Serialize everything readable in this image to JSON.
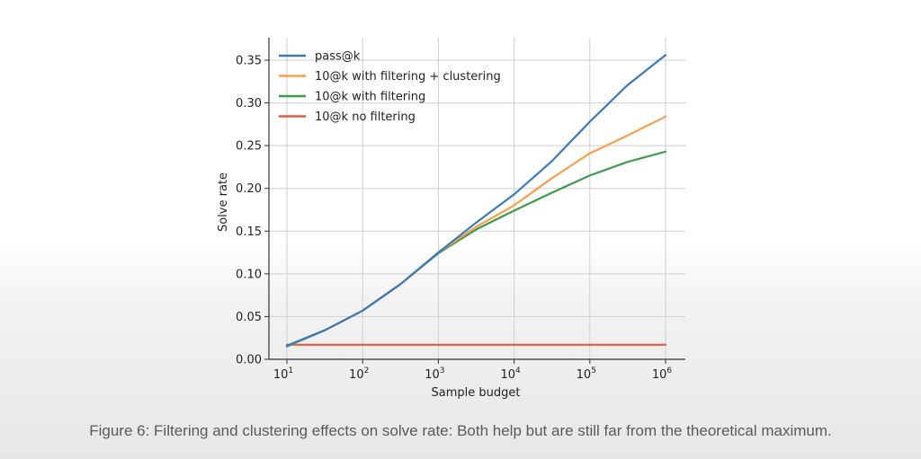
{
  "caption": "Figure 6: Filtering and clustering effects on solve rate: Both help but are still far from the theoretical maximum.",
  "chart_data": {
    "type": "line",
    "title": "",
    "xlabel": "Sample budget",
    "ylabel": "Solve rate",
    "xscale": "log",
    "xlim_exponent": [
      1,
      6
    ],
    "ylim": [
      0,
      0.37
    ],
    "grid": true,
    "legend_position": "upper-left",
    "xticks": [
      {
        "base": "10",
        "exp": "1"
      },
      {
        "base": "10",
        "exp": "2"
      },
      {
        "base": "10",
        "exp": "3"
      },
      {
        "base": "10",
        "exp": "4"
      },
      {
        "base": "10",
        "exp": "5"
      },
      {
        "base": "10",
        "exp": "6"
      }
    ],
    "yticks": [
      "0.00",
      "0.05",
      "0.10",
      "0.15",
      "0.20",
      "0.25",
      "0.30",
      "0.35"
    ],
    "ytick_values": [
      0,
      0.05,
      0.1,
      0.15,
      0.2,
      0.25,
      0.3,
      0.35
    ],
    "x_log10": [
      1,
      1.5,
      2,
      2.5,
      3,
      3.5,
      4,
      4.5,
      5,
      5.5,
      6
    ],
    "series": [
      {
        "name": "pass@k",
        "color": "#3a7ab8",
        "values": [
          0.016,
          0.034,
          0.057,
          0.088,
          0.125,
          0.16,
          0.193,
          0.232,
          0.278,
          0.321,
          0.356
        ]
      },
      {
        "name": "10@k with filtering + clustering",
        "color": "#f6a04d",
        "values": [
          0.016,
          0.034,
          0.057,
          0.088,
          0.125,
          0.155,
          0.18,
          0.212,
          0.241,
          0.262,
          0.284
        ]
      },
      {
        "name": "10@k with filtering",
        "color": "#3d9c4c",
        "values": [
          0.015,
          0.034,
          0.057,
          0.088,
          0.124,
          0.152,
          0.174,
          0.195,
          0.215,
          0.231,
          0.243
        ]
      },
      {
        "name": "10@k no filtering",
        "color": "#e8593a",
        "values": [
          0.017,
          0.017,
          0.017,
          0.017,
          0.017,
          0.017,
          0.017,
          0.017,
          0.017,
          0.017,
          0.017
        ]
      }
    ]
  }
}
